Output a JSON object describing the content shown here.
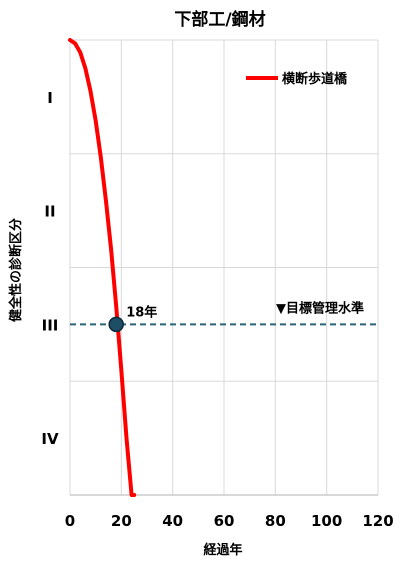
{
  "chart_data": {
    "type": "line",
    "title": "下部工/鋼材",
    "xlabel": "経過年",
    "ylabel": "健全性の診断区分",
    "xlim": [
      0,
      120
    ],
    "xticks": [
      0,
      20,
      40,
      60,
      80,
      100,
      120
    ],
    "y_categories": [
      "I",
      "II",
      "III",
      "IV"
    ],
    "grid": true,
    "legend": {
      "position": "top-right"
    },
    "series": [
      {
        "name": "横断歩道橋",
        "color": "#ff0000",
        "x": [
          0,
          2,
          4,
          6,
          8,
          10,
          12,
          14,
          16,
          18,
          20,
          22,
          24,
          25
        ],
        "y": [
          1.0,
          1.03,
          1.11,
          1.25,
          1.45,
          1.71,
          2.03,
          2.41,
          2.84,
          3.34,
          3.9,
          4.5,
          5.18,
          5.55
        ]
      }
    ],
    "reference_line": {
      "label": "▼目標管理水準",
      "color": "#2a6478",
      "y": 3.5
    },
    "annotation": {
      "label": "18年",
      "x": 18,
      "y": 3.5,
      "marker_color": "#1e4d66"
    }
  }
}
